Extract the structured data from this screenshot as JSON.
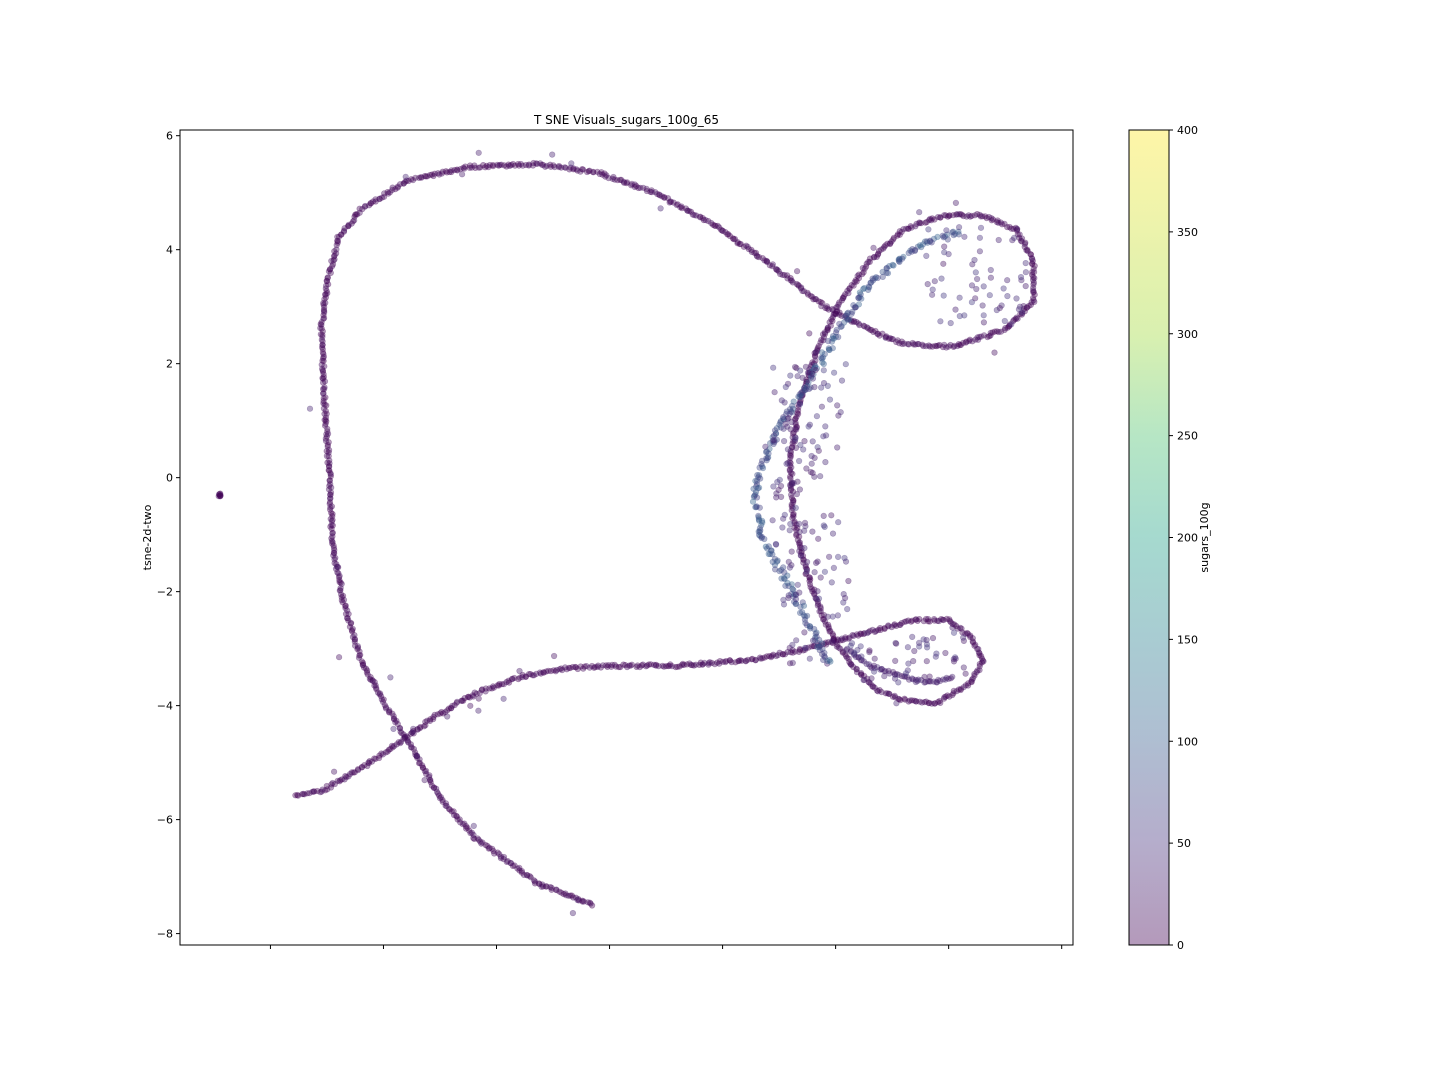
{
  "chart_data": {
    "type": "scatter",
    "title": "T SNE Visuals_sugars_100g_65",
    "xlabel": "",
    "ylabel": "tsne-2d-two",
    "ylim": [
      -8.2,
      6.1
    ],
    "xlim": [
      -7.8,
      8.0
    ],
    "y_ticks": [
      6,
      4,
      2,
      0,
      -2,
      -4,
      -6,
      -8
    ],
    "y_tick_labels": [
      "6",
      "4",
      "2",
      "0",
      "−2",
      "−4",
      "−6",
      "−8"
    ],
    "x_ticks": [
      -6.2,
      -4.2,
      -2.2,
      -0.2,
      1.8,
      3.8,
      5.8,
      7.8
    ],
    "x_tick_labels": [
      "",
      "",
      "",
      "",
      "",
      "",
      "",
      ""
    ],
    "grid": false,
    "marker_alpha": 0.4,
    "colormap": "viridis",
    "colorbar": {
      "label": "sugars_100g",
      "min": 0,
      "max": 400,
      "ticks": [
        0,
        50,
        100,
        150,
        200,
        250,
        300,
        350,
        400
      ],
      "tick_labels": [
        "0",
        "50",
        "100",
        "150",
        "200",
        "250",
        "300",
        "350",
        "400"
      ]
    },
    "structure": [
      {
        "name": "isolated cluster",
        "points": [
          [
            -7.1,
            -0.3
          ],
          [
            -7.1,
            -0.34
          ],
          [
            -7.08,
            -0.28
          ]
        ],
        "sugar": 2
      },
      {
        "name": "left loop arm",
        "points": [
          [
            -0.5,
            -7.5
          ],
          [
            -1.5,
            -7.1
          ],
          [
            -2.6,
            -6.3
          ],
          [
            -3.2,
            -5.6
          ],
          [
            -3.6,
            -4.9
          ],
          [
            -4.1,
            -4.1
          ],
          [
            -4.6,
            -3.2
          ],
          [
            -4.9,
            -2.2
          ],
          [
            -5.1,
            -1.2
          ],
          [
            -5.15,
            0.0
          ],
          [
            -5.25,
            1.5
          ],
          [
            -5.3,
            2.6
          ],
          [
            -5.2,
            3.4
          ],
          [
            -5.0,
            4.2
          ],
          [
            -4.6,
            4.7
          ],
          [
            -3.8,
            5.2
          ],
          [
            -2.7,
            5.45
          ],
          [
            -1.5,
            5.5
          ],
          [
            -0.4,
            5.35
          ],
          [
            0.6,
            5.0
          ],
          [
            1.7,
            4.4
          ],
          [
            2.7,
            3.7
          ],
          [
            3.6,
            3.0
          ],
          [
            4.4,
            2.6
          ],
          [
            5.0,
            2.35
          ],
          [
            5.9,
            2.3
          ],
          [
            6.8,
            2.6
          ],
          [
            7.3,
            3.1
          ],
          [
            7.3,
            3.8
          ],
          [
            7.0,
            4.35
          ],
          [
            6.4,
            4.6
          ],
          [
            5.7,
            4.6
          ],
          [
            5.0,
            4.35
          ],
          [
            4.4,
            3.8
          ],
          [
            3.9,
            3.1
          ],
          [
            3.5,
            2.3
          ],
          [
            3.15,
            1.3
          ],
          [
            3.0,
            0.3
          ],
          [
            3.05,
            -0.7
          ],
          [
            3.3,
            -1.7
          ],
          [
            3.6,
            -2.5
          ],
          [
            3.8,
            -2.9
          ],
          [
            4.1,
            -3.3
          ],
          [
            4.5,
            -3.7
          ],
          [
            5.0,
            -3.9
          ],
          [
            5.6,
            -3.95
          ],
          [
            6.2,
            -3.6
          ],
          [
            6.4,
            -3.2
          ],
          [
            6.2,
            -2.8
          ],
          [
            5.8,
            -2.5
          ],
          [
            5.2,
            -2.5
          ],
          [
            4.4,
            -2.7
          ],
          [
            3.3,
            -3.0
          ],
          [
            2.3,
            -3.2
          ],
          [
            1.0,
            -3.3
          ],
          [
            -0.1,
            -3.3
          ],
          [
            -1.0,
            -3.35
          ],
          [
            -1.8,
            -3.5
          ],
          [
            -2.6,
            -3.8
          ],
          [
            -3.3,
            -4.2
          ],
          [
            -4.0,
            -4.7
          ],
          [
            -4.6,
            -5.1
          ],
          [
            -5.3,
            -5.5
          ],
          [
            -5.8,
            -5.6
          ]
        ]
      },
      {
        "name": "inner blue band",
        "points": [
          [
            6.0,
            4.3
          ],
          [
            5.2,
            4.05
          ],
          [
            4.4,
            3.4
          ],
          [
            3.8,
            2.5
          ],
          [
            3.3,
            1.6
          ],
          [
            2.8,
            0.9
          ],
          [
            2.5,
            0.2
          ],
          [
            2.35,
            -0.3
          ],
          [
            2.5,
            -1.0
          ],
          [
            2.8,
            -1.6
          ],
          [
            3.2,
            -2.3
          ],
          [
            3.5,
            -2.9
          ],
          [
            3.7,
            -3.3
          ]
        ]
      },
      {
        "name": "inner lower loop",
        "points": [
          [
            4.0,
            -3.0
          ],
          [
            4.4,
            -3.3
          ],
          [
            5.0,
            -3.5
          ],
          [
            5.5,
            -3.6
          ],
          [
            5.9,
            -3.5
          ]
        ]
      }
    ]
  }
}
